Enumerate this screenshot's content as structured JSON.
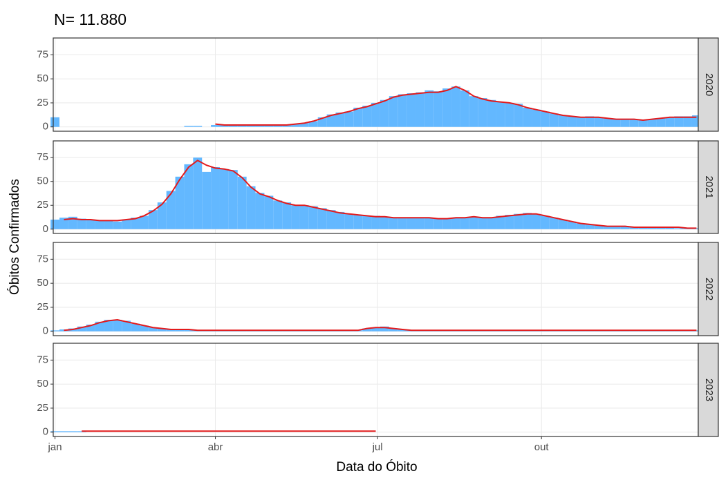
{
  "title": "N= 11.880",
  "x_label": "Data do Óbito",
  "y_label": "Óbitos Confirmados",
  "x": [
    1,
    6,
    11,
    16,
    21,
    26,
    31,
    36,
    41,
    46,
    51,
    56,
    61,
    66,
    71,
    76,
    81,
    86,
    91,
    96,
    101,
    106,
    111,
    116,
    121,
    126,
    131,
    136,
    141,
    146,
    151,
    156,
    161,
    166,
    171,
    176,
    181,
    186,
    191,
    196,
    201,
    206,
    211,
    216,
    221,
    226,
    231,
    236,
    241,
    246,
    251,
    256,
    261,
    266,
    271,
    276,
    281,
    286,
    291,
    296,
    301,
    306,
    311,
    316,
    321,
    326,
    331,
    336,
    341,
    346,
    351,
    356,
    361
  ],
  "xlim": [
    0,
    362
  ],
  "xticks": [
    {
      "value": 1,
      "label": "jan"
    },
    {
      "value": 91,
      "label": "abr"
    },
    {
      "value": 182,
      "label": "jul"
    },
    {
      "value": 274,
      "label": "out"
    }
  ],
  "ylim": [
    -4.5,
    92.5
  ],
  "yticks": [
    0,
    25,
    50,
    75
  ],
  "grid": true,
  "chart_data": [
    {
      "type": "bar",
      "facet": "2020",
      "series": [
        {
          "type": "bar",
          "color": "#63b8ff",
          "values": [
            10,
            0,
            0,
            0,
            0,
            0,
            0,
            0,
            0,
            0,
            0,
            0,
            0,
            0,
            0,
            1,
            1,
            0,
            2,
            2,
            2,
            2,
            2,
            2,
            2,
            2,
            2,
            3,
            4,
            6,
            10,
            13,
            15,
            16,
            20,
            22,
            25,
            28,
            32,
            34,
            35,
            36,
            38,
            37,
            40,
            42,
            38,
            32,
            30,
            28,
            26,
            25,
            24,
            20,
            18,
            16,
            14,
            12,
            11,
            10,
            11,
            10,
            9,
            8,
            8,
            8,
            7,
            8,
            9,
            10,
            11,
            11,
            12
          ]
        },
        {
          "type": "line",
          "color": "#e31a1c",
          "values": [
            null,
            null,
            null,
            null,
            null,
            null,
            null,
            null,
            null,
            null,
            null,
            null,
            null,
            null,
            null,
            null,
            null,
            null,
            3,
            2,
            2,
            2,
            2,
            2,
            2,
            2,
            2,
            3,
            4,
            6,
            9,
            12,
            14,
            16,
            19,
            21,
            24,
            27,
            31,
            33,
            34,
            35,
            36,
            36,
            38,
            42,
            38,
            32,
            29,
            27,
            26,
            25,
            23,
            20,
            18,
            16,
            14,
            12,
            11,
            10,
            10,
            10,
            9,
            8,
            8,
            8,
            7,
            8,
            9,
            10,
            10,
            10,
            10
          ]
        }
      ]
    },
    {
      "type": "bar",
      "facet": "2021",
      "series": [
        {
          "type": "bar",
          "color": "#63b8ff",
          "values": [
            10,
            12,
            13,
            11,
            10,
            9,
            9,
            8,
            10,
            12,
            14,
            20,
            28,
            40,
            55,
            68,
            75,
            60,
            65,
            63,
            62,
            55,
            45,
            38,
            35,
            30,
            28,
            25,
            25,
            24,
            22,
            20,
            18,
            16,
            15,
            14,
            14,
            13,
            12,
            12,
            12,
            12,
            12,
            11,
            11,
            12,
            12,
            13,
            12,
            12,
            14,
            15,
            16,
            17,
            16,
            14,
            12,
            10,
            8,
            6,
            5,
            4,
            3,
            3,
            3,
            2,
            2,
            2,
            2,
            2,
            1,
            1,
            1
          ]
        },
        {
          "type": "line",
          "color": "#e31a1c",
          "values": [
            null,
            10,
            11,
            10,
            10,
            9,
            9,
            9,
            10,
            11,
            14,
            19,
            26,
            37,
            52,
            65,
            72,
            67,
            64,
            63,
            61,
            54,
            44,
            37,
            34,
            30,
            27,
            25,
            25,
            23,
            21,
            19,
            17,
            16,
            15,
            14,
            13,
            13,
            12,
            12,
            12,
            12,
            12,
            11,
            11,
            12,
            12,
            13,
            12,
            12,
            13,
            14,
            15,
            16,
            16,
            14,
            12,
            10,
            8,
            6,
            5,
            4,
            3,
            3,
            3,
            2,
            2,
            2,
            2,
            2,
            2,
            1,
            1
          ]
        }
      ]
    },
    {
      "type": "bar",
      "facet": "2022",
      "series": [
        {
          "type": "bar",
          "color": "#63b8ff",
          "values": [
            1,
            2,
            3,
            5,
            7,
            10,
            12,
            12,
            11,
            8,
            6,
            4,
            3,
            2,
            2,
            2,
            1,
            1,
            1,
            1,
            1,
            1,
            1,
            1,
            1,
            1,
            1,
            1,
            1,
            1,
            1,
            1,
            1,
            1,
            1,
            3,
            4,
            5,
            3,
            2,
            1,
            1,
            1,
            1,
            1,
            1,
            1,
            1,
            1,
            1,
            1,
            1,
            1,
            1,
            1,
            1,
            1,
            1,
            1,
            1,
            1,
            1,
            1,
            1,
            1,
            1,
            1,
            1,
            1,
            1,
            1,
            1,
            1
          ]
        },
        {
          "type": "line",
          "color": "#e31a1c",
          "values": [
            null,
            1,
            2,
            4,
            6,
            9,
            11,
            12,
            10,
            8,
            6,
            4,
            3,
            2,
            2,
            2,
            1,
            1,
            1,
            1,
            1,
            1,
            1,
            1,
            1,
            1,
            1,
            1,
            1,
            1,
            1,
            1,
            1,
            1,
            1,
            3,
            4,
            4,
            3,
            2,
            1,
            1,
            1,
            1,
            1,
            1,
            1,
            1,
            1,
            1,
            1,
            1,
            1,
            1,
            1,
            1,
            1,
            1,
            1,
            1,
            1,
            1,
            1,
            1,
            1,
            1,
            1,
            1,
            1,
            1,
            1,
            1,
            1
          ]
        }
      ]
    },
    {
      "type": "bar",
      "facet": "2023",
      "series": [
        {
          "type": "bar",
          "color": "#63b8ff",
          "values": [
            1,
            1,
            1,
            1,
            0,
            0,
            0,
            0,
            0,
            0,
            0,
            0,
            0,
            0,
            0,
            0,
            0,
            0,
            0,
            0,
            0,
            0,
            0,
            0,
            0,
            0,
            0,
            0,
            0,
            0,
            0,
            0,
            0,
            0,
            0,
            0,
            0,
            0,
            0,
            0,
            0,
            0,
            0,
            0,
            0,
            0,
            0,
            0,
            0,
            0,
            0,
            0,
            0,
            0,
            0,
            0,
            0,
            0,
            0,
            0,
            0,
            0,
            0,
            0,
            0,
            0,
            0,
            0,
            0,
            0,
            0,
            0,
            0
          ]
        },
        {
          "type": "line",
          "color": "#e31a1c",
          "values": [
            null,
            null,
            null,
            1,
            1,
            1,
            1,
            1,
            1,
            1,
            1,
            1,
            1,
            1,
            1,
            1,
            1,
            1,
            1,
            1,
            1,
            1,
            1,
            1,
            1,
            1,
            1,
            1,
            1,
            1,
            1,
            1,
            1,
            1,
            1,
            1,
            1,
            null,
            null,
            null,
            null,
            null,
            null,
            null,
            null,
            null,
            null,
            null,
            null,
            null,
            null,
            null,
            null,
            null,
            null,
            null,
            null,
            null,
            null,
            null,
            null,
            null,
            null,
            null,
            null,
            null,
            null,
            null,
            null,
            null,
            null,
            null,
            null
          ]
        }
      ]
    }
  ]
}
